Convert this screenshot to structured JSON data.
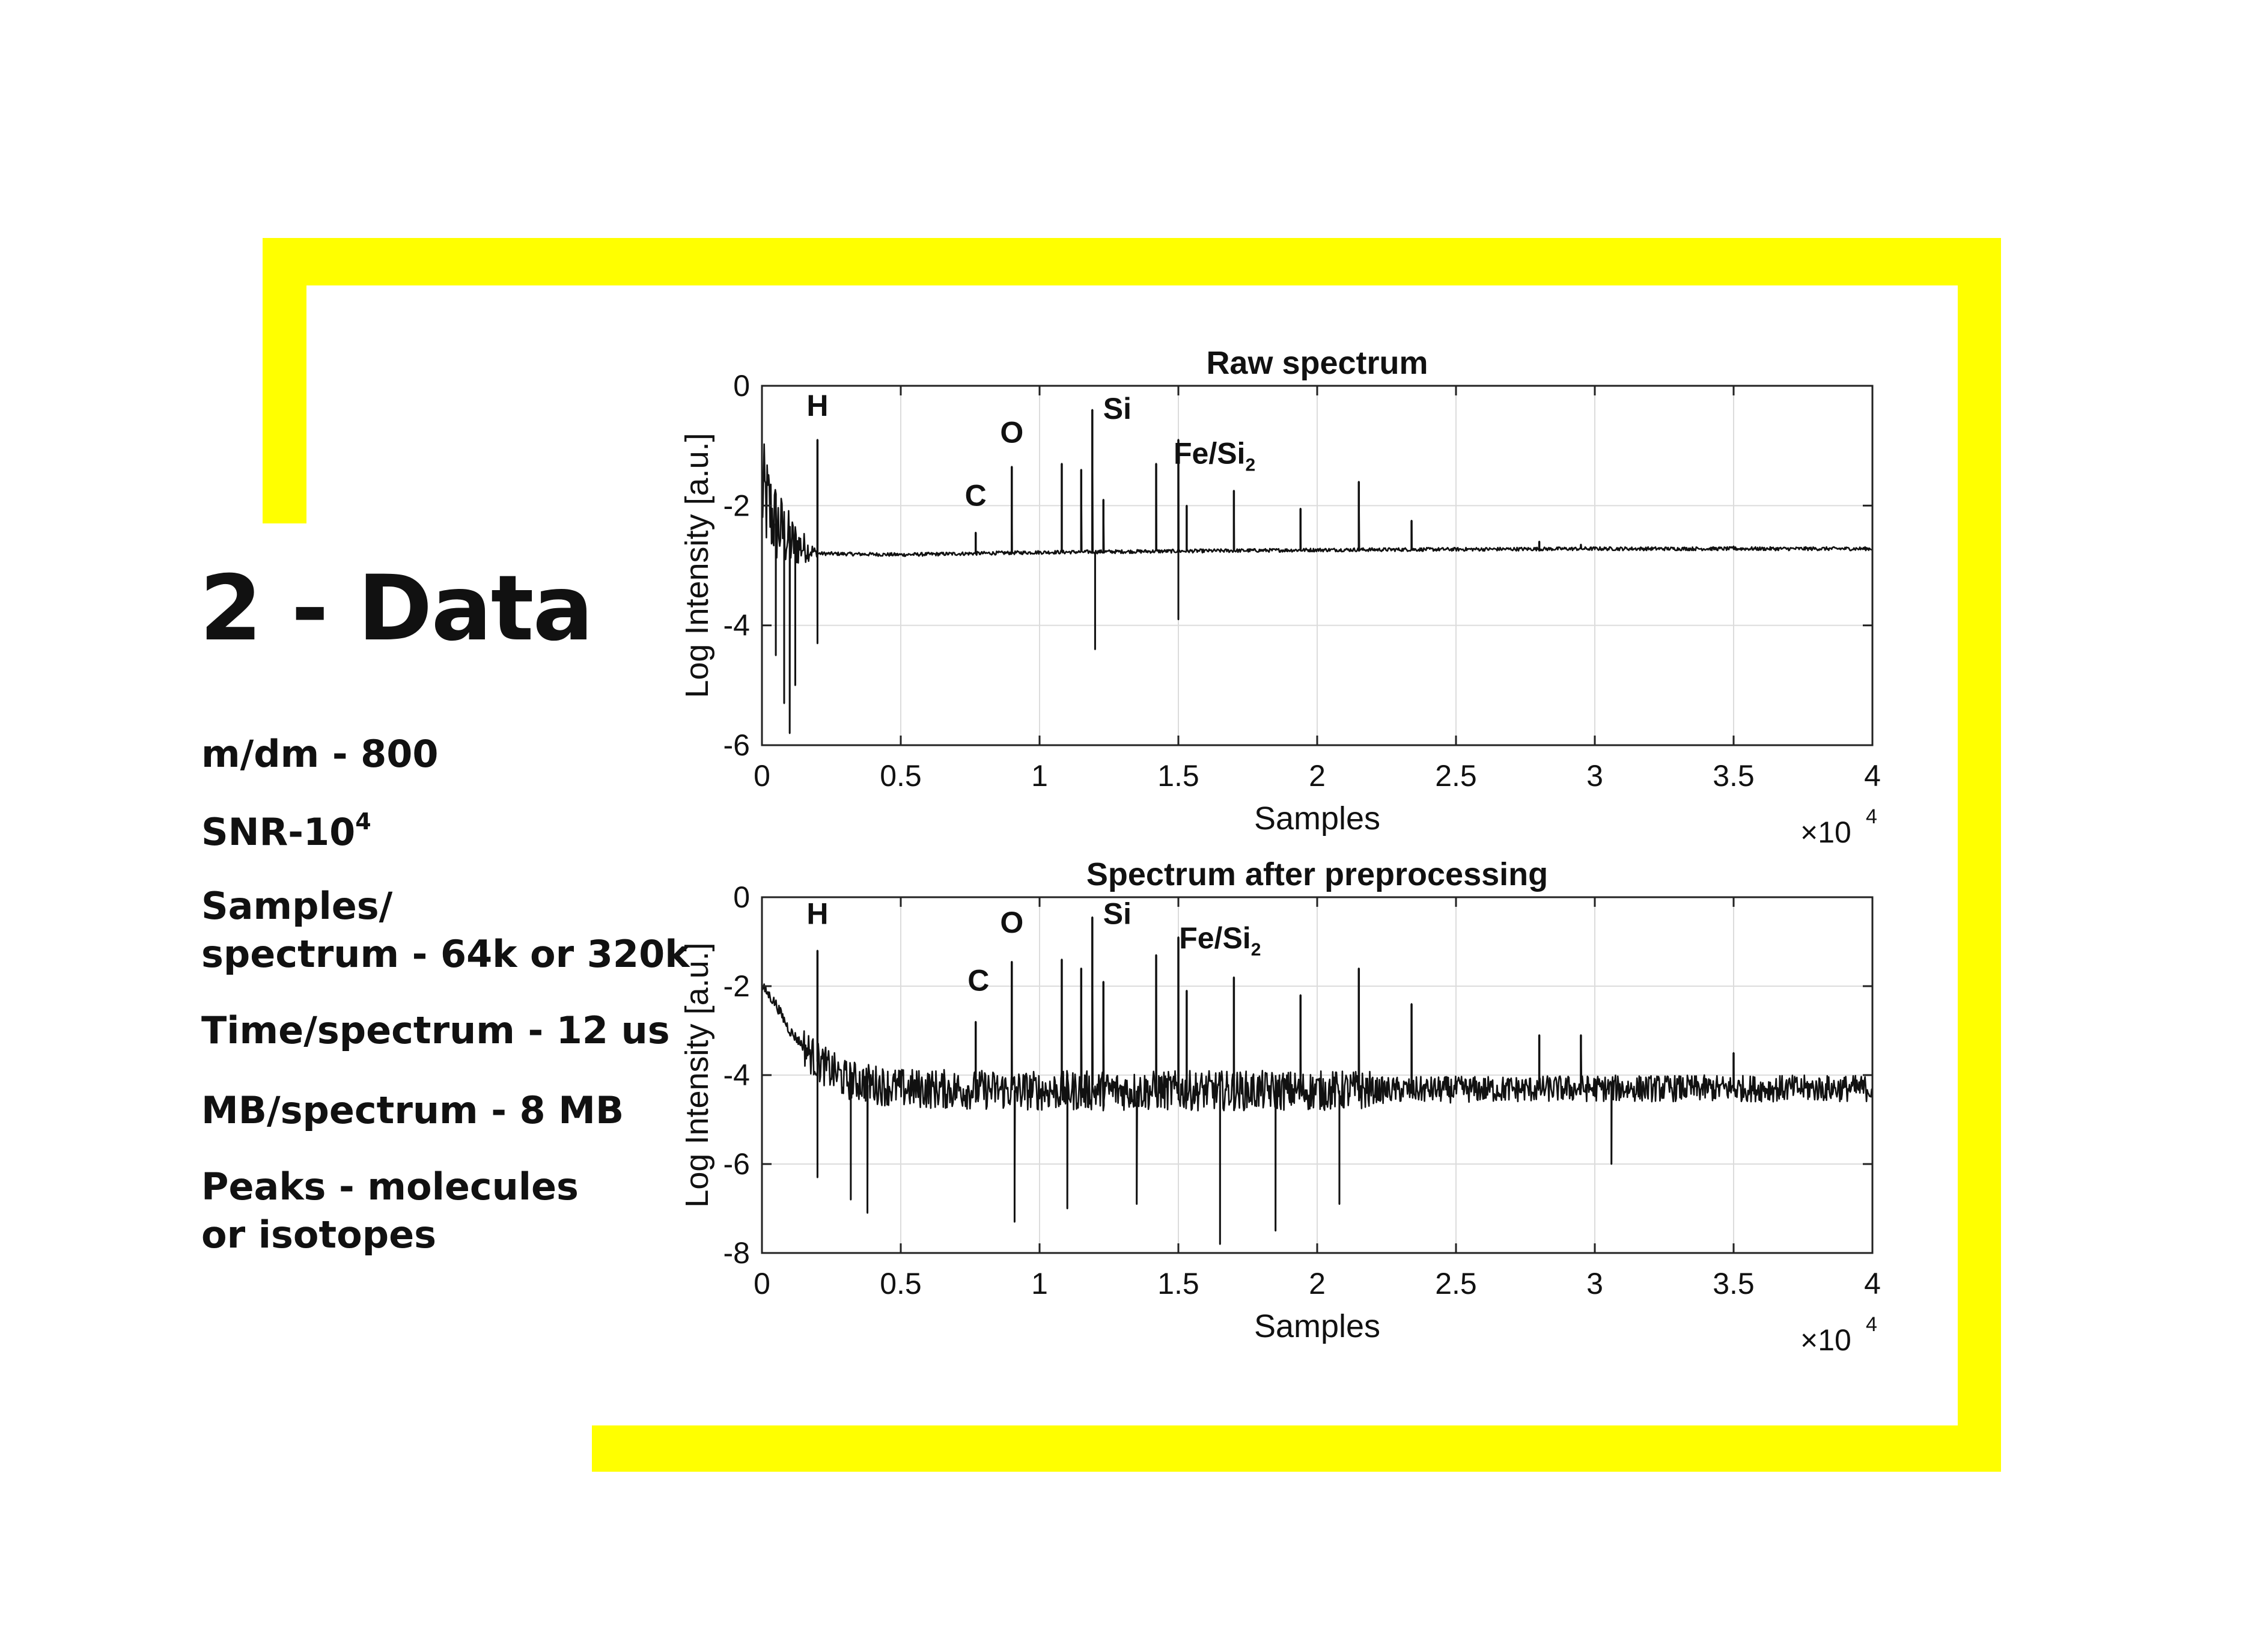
{
  "page": {
    "heading": "2 - Data",
    "accent_color": "#ffff00",
    "specs": [
      {
        "lines": [
          "m/dm - 800"
        ]
      },
      {
        "lines": [
          "SNR-10"
        ],
        "superscript": "4"
      },
      {
        "lines": [
          "Samples/",
          "spectrum - 64k or 320k"
        ]
      },
      {
        "lines": [
          "Time/spectrum - 12 us"
        ]
      },
      {
        "lines": [
          "MB/spectrum - 8 MB"
        ]
      },
      {
        "lines": [
          "Peaks - molecules",
          "or isotopes"
        ]
      }
    ]
  },
  "chart_data": [
    {
      "type": "line",
      "title": "Raw spectrum",
      "xlabel": "Samples",
      "ylabel": "Log Intensity [a.u.]",
      "x_multiplier": "×10",
      "x_multiplier_exponent": "4",
      "xlim": [
        0,
        4
      ],
      "ylim": [
        -6,
        0
      ],
      "xticks": [
        0,
        0.5,
        1,
        1.5,
        2,
        2.5,
        3,
        3.5,
        4
      ],
      "xtick_labels": [
        "0",
        "0.5",
        "1",
        "1.5",
        "2",
        "2.5",
        "3",
        "3.5",
        "4"
      ],
      "yticks": [
        0,
        -2,
        -4,
        -6
      ],
      "ytick_labels": [
        "0",
        "-2",
        "-4",
        "-6"
      ],
      "grid": true,
      "line_color": "#111111",
      "baseline": [
        [
          0,
          -1.8
        ],
        [
          0.05,
          -2.3
        ],
        [
          0.1,
          -2.6
        ],
        [
          0.2,
          -2.8
        ],
        [
          0.5,
          -2.82
        ],
        [
          1,
          -2.78
        ],
        [
          1.5,
          -2.76
        ],
        [
          2,
          -2.74
        ],
        [
          3,
          -2.72
        ],
        [
          4,
          -2.72
        ]
      ],
      "peaks": [
        {
          "x": 0.2,
          "y": -0.9
        },
        {
          "x": 0.77,
          "y": -2.45
        },
        {
          "x": 0.9,
          "y": -1.35
        },
        {
          "x": 1.08,
          "y": -1.3
        },
        {
          "x": 1.15,
          "y": -1.4
        },
        {
          "x": 1.19,
          "y": -0.4
        },
        {
          "x": 1.23,
          "y": -1.9
        },
        {
          "x": 1.42,
          "y": -1.3
        },
        {
          "x": 1.5,
          "y": -0.9
        },
        {
          "x": 1.53,
          "y": -2.0
        },
        {
          "x": 1.7,
          "y": -1.75
        },
        {
          "x": 1.94,
          "y": -2.05
        },
        {
          "x": 2.15,
          "y": -1.6
        },
        {
          "x": 2.34,
          "y": -2.25
        },
        {
          "x": 2.8,
          "y": -2.6
        },
        {
          "x": 2.95,
          "y": -2.65
        },
        {
          "x": 3.5,
          "y": -2.68
        }
      ],
      "dips": [
        {
          "x": 0.05,
          "y": -4.5
        },
        {
          "x": 0.08,
          "y": -5.3
        },
        {
          "x": 0.1,
          "y": -5.8
        },
        {
          "x": 0.12,
          "y": -5.0
        },
        {
          "x": 0.2,
          "y": -4.3
        },
        {
          "x": 1.2,
          "y": -4.4
        },
        {
          "x": 1.5,
          "y": -3.9
        }
      ],
      "annotations": [
        {
          "text": "H",
          "x": 0.2,
          "y": -0.5
        },
        {
          "text": "C",
          "x": 0.77,
          "y": -2.0
        },
        {
          "text": "O",
          "x": 0.9,
          "y": -0.95
        },
        {
          "text": "Si",
          "x": 1.28,
          "y": -0.55
        },
        {
          "text": "Fe/Si",
          "sub": "2",
          "x": 1.63,
          "y": -1.3
        }
      ]
    },
    {
      "type": "line",
      "title": "Spectrum after preprocessing",
      "xlabel": "Samples",
      "ylabel": "Log Intensity [a.u.]",
      "x_multiplier": "×10",
      "x_multiplier_exponent": "4",
      "xlim": [
        0,
        4
      ],
      "ylim": [
        -8,
        0
      ],
      "xticks": [
        0,
        0.5,
        1,
        1.5,
        2,
        2.5,
        3,
        3.5,
        4
      ],
      "xtick_labels": [
        "0",
        "0.5",
        "1",
        "1.5",
        "2",
        "2.5",
        "3",
        "3.5",
        "4"
      ],
      "yticks": [
        0,
        -2,
        -4,
        -6,
        -8
      ],
      "ytick_labels": [
        "0",
        "-2",
        "-4",
        "-6",
        "-8"
      ],
      "grid": true,
      "line_color": "#111111",
      "baseline": [
        [
          0,
          -2.0
        ],
        [
          0.05,
          -2.4
        ],
        [
          0.1,
          -3.0
        ],
        [
          0.2,
          -3.7
        ],
        [
          0.3,
          -4.1
        ],
        [
          0.5,
          -4.3
        ],
        [
          1,
          -4.35
        ],
        [
          2,
          -4.35
        ],
        [
          3,
          -4.3
        ],
        [
          4,
          -4.3
        ]
      ],
      "peaks": [
        {
          "x": 0.2,
          "y": -1.2
        },
        {
          "x": 0.77,
          "y": -2.8
        },
        {
          "x": 0.9,
          "y": -1.45
        },
        {
          "x": 1.08,
          "y": -1.4
        },
        {
          "x": 1.15,
          "y": -1.6
        },
        {
          "x": 1.19,
          "y": -0.45
        },
        {
          "x": 1.23,
          "y": -1.9
        },
        {
          "x": 1.42,
          "y": -1.3
        },
        {
          "x": 1.5,
          "y": -0.9
        },
        {
          "x": 1.53,
          "y": -2.1
        },
        {
          "x": 1.7,
          "y": -1.8
        },
        {
          "x": 1.94,
          "y": -2.2
        },
        {
          "x": 2.15,
          "y": -1.6
        },
        {
          "x": 2.34,
          "y": -2.4
        },
        {
          "x": 2.8,
          "y": -3.1
        },
        {
          "x": 2.95,
          "y": -3.1
        },
        {
          "x": 3.5,
          "y": -3.5
        }
      ],
      "dips": [
        {
          "x": 0.2,
          "y": -6.3
        },
        {
          "x": 0.32,
          "y": -6.8
        },
        {
          "x": 0.38,
          "y": -7.1
        },
        {
          "x": 0.91,
          "y": -7.3
        },
        {
          "x": 1.1,
          "y": -7.0
        },
        {
          "x": 1.35,
          "y": -6.9
        },
        {
          "x": 1.65,
          "y": -7.8
        },
        {
          "x": 1.85,
          "y": -7.5
        },
        {
          "x": 2.08,
          "y": -6.9
        },
        {
          "x": 3.06,
          "y": -6.0
        }
      ],
      "annotations": [
        {
          "text": "H",
          "x": 0.2,
          "y": -0.6
        },
        {
          "text": "C",
          "x": 0.78,
          "y": -2.1
        },
        {
          "text": "O",
          "x": 0.9,
          "y": -0.8
        },
        {
          "text": "Si",
          "x": 1.28,
          "y": -0.6
        },
        {
          "text": "Fe/Si",
          "sub": "2",
          "x": 1.65,
          "y": -1.15
        }
      ]
    }
  ]
}
